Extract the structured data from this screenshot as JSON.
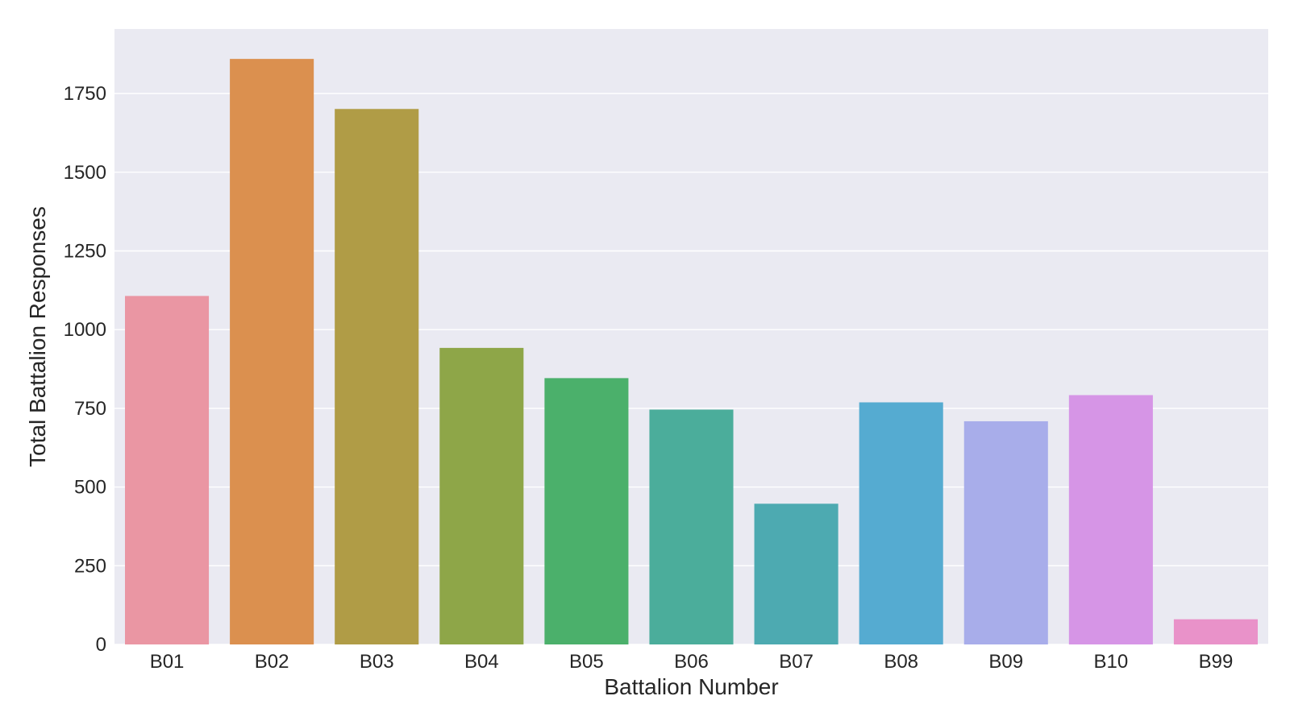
{
  "chart_data": {
    "type": "bar",
    "title": "",
    "xlabel": "Battalion Number",
    "ylabel": "Total Battalion Responses",
    "categories": [
      "B01",
      "B02",
      "B03",
      "B04",
      "B05",
      "B06",
      "B07",
      "B08",
      "B09",
      "B10",
      "B99"
    ],
    "values": [
      1107,
      1860,
      1701,
      942,
      846,
      746,
      447,
      769,
      709,
      792,
      80
    ],
    "colors": [
      "#ea96a3",
      "#db904f",
      "#b09c46",
      "#8ea648",
      "#4bb06b",
      "#4bad9b",
      "#4daab1",
      "#55abd1",
      "#a8adea",
      "#d695e6",
      "#e992c9"
    ],
    "ylim": [
      0,
      1955
    ],
    "yticks": [
      0,
      250,
      500,
      750,
      1000,
      1250,
      1500,
      1750
    ],
    "ytick_labels": [
      "0",
      "250",
      "500",
      "750",
      "1000",
      "1250",
      "1500",
      "1750"
    ],
    "grid": true,
    "background_color": "#eaeaf2",
    "grid_color": "#ffffff",
    "text_color": "#262626"
  }
}
